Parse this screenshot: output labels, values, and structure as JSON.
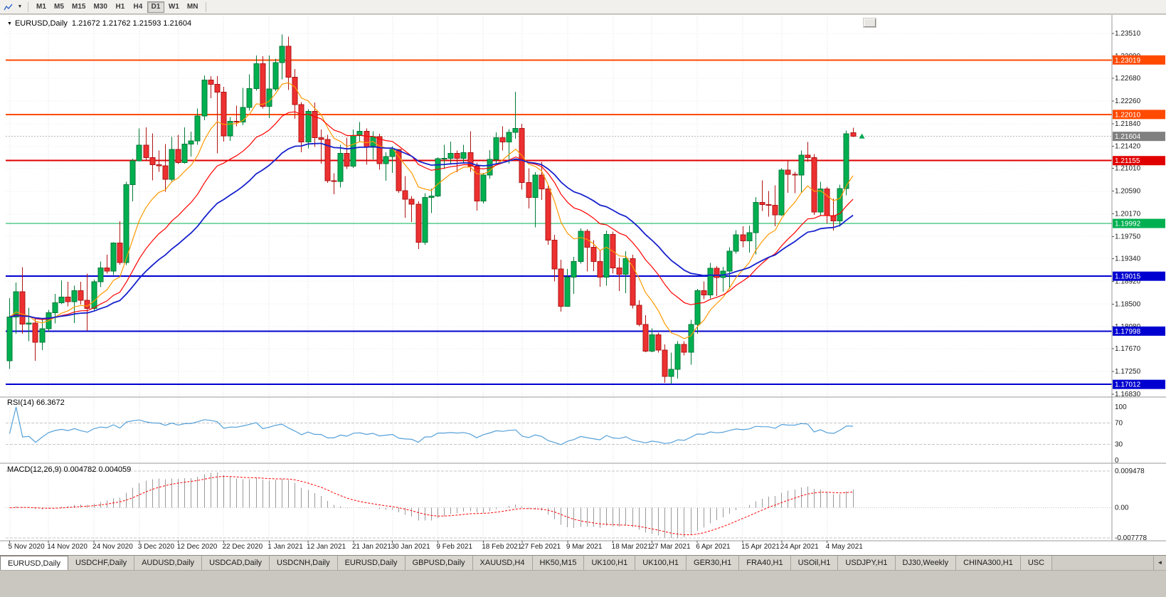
{
  "toolbar": {
    "timeframes": [
      {
        "label": "M1",
        "active": false
      },
      {
        "label": "M5",
        "active": false
      },
      {
        "label": "M15",
        "active": false
      },
      {
        "label": "M30",
        "active": false
      },
      {
        "label": "H1",
        "active": false
      },
      {
        "label": "H4",
        "active": false
      },
      {
        "label": "D1",
        "active": true
      },
      {
        "label": "W1",
        "active": false
      },
      {
        "label": "MN",
        "active": false
      }
    ]
  },
  "chart": {
    "title_symbol": "EURUSD,Daily",
    "title_ohlc": "1.21672 1.21762 1.21593 1.21604",
    "rsi_label": "RSI(14) 66.3672",
    "macd_label": "MACD(12,26,9) 0.004782 0.004059"
  },
  "chart_data": {
    "type": "candlestick",
    "symbol": "EURUSD",
    "timeframe": "Daily",
    "current": {
      "open": 1.21672,
      "high": 1.21762,
      "low": 1.21593,
      "close": 1.21604
    },
    "current_price": 1.21604,
    "current_price_color": "#808080",
    "price_axis": {
      "max": 1.2351,
      "min": 1.1683,
      "ticks": [
        1.2351,
        1.2309,
        1.2268,
        1.2226,
        1.2184,
        1.2142,
        1.2101,
        1.2059,
        1.2017,
        1.1975,
        1.1934,
        1.1892,
        1.185,
        1.1808,
        1.1767,
        1.1725,
        1.1683
      ]
    },
    "date_labels": [
      {
        "i": 0,
        "label": "5 Nov 2020"
      },
      {
        "i": 6,
        "label": "14 Nov 2020"
      },
      {
        "i": 13,
        "label": "24 Nov 2020"
      },
      {
        "i": 20,
        "label": "3 Dec 2020"
      },
      {
        "i": 26,
        "label": "12 Dec 2020"
      },
      {
        "i": 33,
        "label": "22 Dec 2020"
      },
      {
        "i": 40,
        "label": "1 Jan 2021"
      },
      {
        "i": 46,
        "label": "12 Jan 2021"
      },
      {
        "i": 53,
        "label": "21 Jan 2021"
      },
      {
        "i": 59,
        "label": "30 Jan 2021"
      },
      {
        "i": 66,
        "label": "9 Feb 2021"
      },
      {
        "i": 73,
        "label": "18 Feb 2021"
      },
      {
        "i": 79,
        "label": "27 Feb 2021"
      },
      {
        "i": 86,
        "label": "9 Mar 2021"
      },
      {
        "i": 93,
        "label": "18 Mar 2021"
      },
      {
        "i": 99,
        "label": "27 Mar 2021"
      },
      {
        "i": 106,
        "label": "6 Apr 2021"
      },
      {
        "i": 113,
        "label": "15 Apr 2021"
      },
      {
        "i": 119,
        "label": "24 Apr 2021"
      },
      {
        "i": 126,
        "label": "4 May 2021"
      }
    ],
    "hlines": [
      {
        "price": 1.23019,
        "color": "#ff4a00",
        "width": 2
      },
      {
        "price": 1.2201,
        "color": "#ff4a00",
        "width": 2
      },
      {
        "price": 1.21155,
        "color": "#e00000",
        "width": 2
      },
      {
        "price": 1.19992,
        "color": "#00b050",
        "width": 1.4
      },
      {
        "price": 1.19015,
        "color": "#0000d0",
        "width": 2
      },
      {
        "price": 1.17998,
        "color": "#0000d0",
        "width": 2
      },
      {
        "price": 1.17012,
        "color": "#0000d0",
        "width": 2
      }
    ],
    "moving_averages": [
      {
        "name": "ma-fast",
        "method": "ema",
        "period": 9,
        "color": "#ff9900",
        "width": 1.2
      },
      {
        "name": "ma-mid",
        "method": "ema",
        "period": 20,
        "color": "#ff0000",
        "width": 1.2
      },
      {
        "name": "ma-slow",
        "method": "ema",
        "period": 34,
        "color": "#1722cc",
        "width": 1.8
      }
    ],
    "rsi": {
      "period": 14,
      "value": 66.3672,
      "levels": [
        70,
        30
      ],
      "axis_ticks": [
        100,
        70,
        30,
        0
      ],
      "color": "#55a0d8"
    },
    "macd": {
      "fast": 12,
      "slow": 26,
      "signal": 9,
      "main_value": 0.004782,
      "signal_value": 0.004059,
      "axis_max": 0.009478,
      "axis_min": -0.007778,
      "axis_labels": [
        "0.009478",
        "0.00",
        "-0.007778"
      ],
      "bar_color": "#9a9a9a",
      "signal_color": "#ff0000"
    },
    "colors": {
      "bull": "#00b050",
      "bull_edge": "#007a38",
      "bear": "#ed3030",
      "bear_edge": "#b01414",
      "grid": "#dcdcdc"
    },
    "candles": [
      [
        1.1745,
        1.1861,
        1.173,
        1.1826
      ],
      [
        1.1826,
        1.189,
        1.1795,
        1.1873
      ],
      [
        1.1873,
        1.1918,
        1.1795,
        1.1813
      ],
      [
        1.1813,
        1.1843,
        1.1781,
        1.1815
      ],
      [
        1.1815,
        1.1824,
        1.1745,
        1.1779
      ],
      [
        1.1779,
        1.1823,
        1.1765,
        1.1804
      ],
      [
        1.1804,
        1.1839,
        1.1799,
        1.1834
      ],
      [
        1.1834,
        1.1869,
        1.1814,
        1.1852
      ],
      [
        1.1852,
        1.1894,
        1.185,
        1.1863
      ],
      [
        1.1863,
        1.1891,
        1.1846,
        1.1854
      ],
      [
        1.1854,
        1.1884,
        1.1815,
        1.1875
      ],
      [
        1.1875,
        1.1891,
        1.1849,
        1.1857
      ],
      [
        1.1857,
        1.1906,
        1.18,
        1.1842
      ],
      [
        1.1842,
        1.1895,
        1.1836,
        1.1891
      ],
      [
        1.1891,
        1.1929,
        1.1881,
        1.1917
      ],
      [
        1.1917,
        1.1941,
        1.1906,
        1.1911
      ],
      [
        1.1911,
        1.1964,
        1.1904,
        1.1963
      ],
      [
        1.1963,
        1.2003,
        1.1923,
        1.1927
      ],
      [
        1.1927,
        1.2076,
        1.1922,
        1.2071
      ],
      [
        1.2071,
        1.2119,
        1.204,
        1.2115
      ],
      [
        1.2115,
        1.2175,
        1.2114,
        1.2144
      ],
      [
        1.2144,
        1.2177,
        1.2115,
        1.2121
      ],
      [
        1.2121,
        1.2166,
        1.2079,
        1.2108
      ],
      [
        1.2108,
        1.2134,
        1.2095,
        1.2106
      ],
      [
        1.2106,
        1.2146,
        1.2058,
        1.2081
      ],
      [
        1.2081,
        1.2159,
        1.2075,
        1.2136
      ],
      [
        1.2136,
        1.2163,
        1.2109,
        1.2112
      ],
      [
        1.2112,
        1.2177,
        1.211,
        1.2146
      ],
      [
        1.2146,
        1.2169,
        1.2123,
        1.2152
      ],
      [
        1.2152,
        1.2212,
        1.2145,
        1.2198
      ],
      [
        1.2198,
        1.2273,
        1.219,
        1.2265
      ],
      [
        1.2265,
        1.2272,
        1.2231,
        1.2257
      ],
      [
        1.2257,
        1.2272,
        1.2129,
        1.2242
      ],
      [
        1.2242,
        1.2252,
        1.2151,
        1.2161
      ],
      [
        1.2161,
        1.2196,
        1.2152,
        1.2188
      ],
      [
        1.2188,
        1.2217,
        1.2179,
        1.2187
      ],
      [
        1.2187,
        1.225,
        1.2181,
        1.2214
      ],
      [
        1.2214,
        1.2275,
        1.2208,
        1.2249
      ],
      [
        1.2249,
        1.231,
        1.2245,
        1.2295
      ],
      [
        1.2295,
        1.2309,
        1.2212,
        1.2216
      ],
      [
        1.2216,
        1.231,
        1.2194,
        1.2248
      ],
      [
        1.2248,
        1.2304,
        1.2244,
        1.2297
      ],
      [
        1.2297,
        1.2349,
        1.2266,
        1.2327
      ],
      [
        1.2327,
        1.2345,
        1.2246,
        1.227
      ],
      [
        1.227,
        1.2285,
        1.2193,
        1.2219
      ],
      [
        1.2219,
        1.2224,
        1.2131,
        1.215
      ],
      [
        1.215,
        1.2211,
        1.2138,
        1.2207
      ],
      [
        1.2207,
        1.2223,
        1.2141,
        1.2158
      ],
      [
        1.2158,
        1.2173,
        1.211,
        1.2155
      ],
      [
        1.2155,
        1.2163,
        1.2074,
        1.2078
      ],
      [
        1.2078,
        1.2092,
        1.2053,
        1.2077
      ],
      [
        1.2077,
        1.2145,
        1.2066,
        1.2129
      ],
      [
        1.2129,
        1.2158,
        1.21,
        1.2105
      ],
      [
        1.2105,
        1.2173,
        1.2102,
        1.2162
      ],
      [
        1.2162,
        1.2187,
        1.2151,
        1.217
      ],
      [
        1.217,
        1.2175,
        1.2108,
        1.214
      ],
      [
        1.214,
        1.217,
        1.2118,
        1.216
      ],
      [
        1.216,
        1.2165,
        1.2099,
        1.211
      ],
      [
        1.211,
        1.2131,
        1.2078,
        1.2123
      ],
      [
        1.2123,
        1.2142,
        1.2093,
        1.2136
      ],
      [
        1.2136,
        1.2137,
        1.2056,
        1.206
      ],
      [
        1.206,
        1.2087,
        1.201,
        1.2044
      ],
      [
        1.2044,
        1.205,
        1.2002,
        1.2035
      ],
      [
        1.2035,
        1.204,
        1.1952,
        1.1964
      ],
      [
        1.1964,
        1.2055,
        1.196,
        1.2047
      ],
      [
        1.2047,
        1.2064,
        1.2018,
        1.205
      ],
      [
        1.205,
        1.2122,
        1.2048,
        1.2119
      ],
      [
        1.2119,
        1.2145,
        1.21,
        1.212
      ],
      [
        1.212,
        1.2151,
        1.2108,
        1.2129
      ],
      [
        1.2129,
        1.2134,
        1.2094,
        1.212
      ],
      [
        1.212,
        1.2145,
        1.211,
        1.213
      ],
      [
        1.213,
        1.217,
        1.2095,
        1.2105
      ],
      [
        1.2105,
        1.2112,
        1.2023,
        1.2041
      ],
      [
        1.2041,
        1.2093,
        1.2036,
        1.2089
      ],
      [
        1.2089,
        1.2135,
        1.2082,
        1.2118
      ],
      [
        1.2118,
        1.2168,
        1.2107,
        1.2158
      ],
      [
        1.2158,
        1.2179,
        1.2134,
        1.215
      ],
      [
        1.215,
        1.2174,
        1.211,
        1.2168
      ],
      [
        1.2168,
        1.2243,
        1.2156,
        1.2175
      ],
      [
        1.2175,
        1.2184,
        1.2062,
        1.2075
      ],
      [
        1.2075,
        1.2101,
        1.2027,
        1.2047
      ],
      [
        1.2047,
        1.2094,
        1.1992,
        1.2089
      ],
      [
        1.2089,
        1.2113,
        1.2043,
        1.2063
      ],
      [
        1.2063,
        1.2069,
        1.196,
        1.1968
      ],
      [
        1.1968,
        1.1978,
        1.1892,
        1.1915
      ],
      [
        1.1915,
        1.1932,
        1.1836,
        1.1846
      ],
      [
        1.1846,
        1.1915,
        1.1845,
        1.19
      ],
      [
        1.19,
        1.1937,
        1.1869,
        1.1929
      ],
      [
        1.1929,
        1.199,
        1.1925,
        1.1985
      ],
      [
        1.1985,
        1.1989,
        1.191,
        1.1955
      ],
      [
        1.1955,
        1.1968,
        1.1911,
        1.1929
      ],
      [
        1.1929,
        1.195,
        1.1882,
        1.19
      ],
      [
        1.19,
        1.1986,
        1.1884,
        1.1979
      ],
      [
        1.1979,
        1.1984,
        1.1906,
        1.1917
      ],
      [
        1.1917,
        1.1935,
        1.1874,
        1.1905
      ],
      [
        1.1905,
        1.1948,
        1.187,
        1.1934
      ],
      [
        1.1934,
        1.1941,
        1.1842,
        1.1848
      ],
      [
        1.1848,
        1.1857,
        1.1809,
        1.1812
      ],
      [
        1.1812,
        1.1829,
        1.1761,
        1.1763
      ],
      [
        1.1763,
        1.1805,
        1.1761,
        1.1793
      ],
      [
        1.1793,
        1.1797,
        1.176,
        1.1765
      ],
      [
        1.1765,
        1.1775,
        1.1704,
        1.1716
      ],
      [
        1.1716,
        1.176,
        1.1702,
        1.1729
      ],
      [
        1.1729,
        1.1781,
        1.1712,
        1.1775
      ],
      [
        1.1775,
        1.1781,
        1.1755,
        1.1761
      ],
      [
        1.1761,
        1.1821,
        1.1738,
        1.1812
      ],
      [
        1.1812,
        1.1878,
        1.1795,
        1.1875
      ],
      [
        1.1875,
        1.1892,
        1.1859,
        1.1867
      ],
      [
        1.1867,
        1.1926,
        1.186,
        1.1916
      ],
      [
        1.1916,
        1.192,
        1.1865,
        1.1899
      ],
      [
        1.1899,
        1.1919,
        1.1873,
        1.1911
      ],
      [
        1.1911,
        1.1955,
        1.1878,
        1.1948
      ],
      [
        1.1948,
        1.1987,
        1.1943,
        1.1978
      ],
      [
        1.1978,
        1.1994,
        1.1955,
        1.1967
      ],
      [
        1.1967,
        1.1995,
        1.1945,
        1.1982
      ],
      [
        1.1982,
        1.2048,
        1.1942,
        1.2038
      ],
      [
        1.2038,
        1.2079,
        1.2022,
        1.2034
      ],
      [
        1.2034,
        1.2059,
        1.2012,
        1.2033
      ],
      [
        1.2033,
        1.207,
        1.1994,
        1.2015
      ],
      [
        1.2015,
        1.2101,
        1.2013,
        1.2098
      ],
      [
        1.2098,
        1.2117,
        1.2056,
        1.209
      ],
      [
        1.209,
        1.2095,
        1.2055,
        1.2089
      ],
      [
        1.2089,
        1.2134,
        1.2057,
        1.2126
      ],
      [
        1.2126,
        1.215,
        1.2113,
        1.2121
      ],
      [
        1.2121,
        1.2128,
        1.2015,
        1.202
      ],
      [
        1.202,
        1.2076,
        1.2013,
        1.2063
      ],
      [
        1.2063,
        1.2067,
        1.1999,
        1.2014
      ],
      [
        1.2014,
        1.2045,
        1.1986,
        1.2004
      ],
      [
        1.2004,
        1.2071,
        1.1993,
        1.2064
      ],
      [
        1.2064,
        1.2171,
        1.2051,
        1.2165
      ],
      [
        1.21672,
        1.21762,
        1.21593,
        1.21604
      ]
    ]
  },
  "tabs": {
    "items": [
      {
        "label": "EURUSD,Daily",
        "active": true
      },
      {
        "label": "USDCHF,Daily",
        "active": false
      },
      {
        "label": "AUDUSD,Daily",
        "active": false
      },
      {
        "label": "USDCAD,Daily",
        "active": false
      },
      {
        "label": "USDCNH,Daily",
        "active": false
      },
      {
        "label": "EURUSD,Daily",
        "active": false
      },
      {
        "label": "GBPUSD,Daily",
        "active": false
      },
      {
        "label": "XAUUSD,H4",
        "active": false
      },
      {
        "label": "HK50,M15",
        "active": false
      },
      {
        "label": "UK100,H1",
        "active": false
      },
      {
        "label": "UK100,H1",
        "active": false
      },
      {
        "label": "GER30,H1",
        "active": false
      },
      {
        "label": "FRA40,H1",
        "active": false
      },
      {
        "label": "USOil,H1",
        "active": false
      },
      {
        "label": "USDJPY,H1",
        "active": false
      },
      {
        "label": "DJ30,Weekly",
        "active": false
      },
      {
        "label": "CHINA300,H1",
        "active": false
      },
      {
        "label": "USC",
        "active": false
      }
    ],
    "scroll_left_glyph": "◄"
  }
}
